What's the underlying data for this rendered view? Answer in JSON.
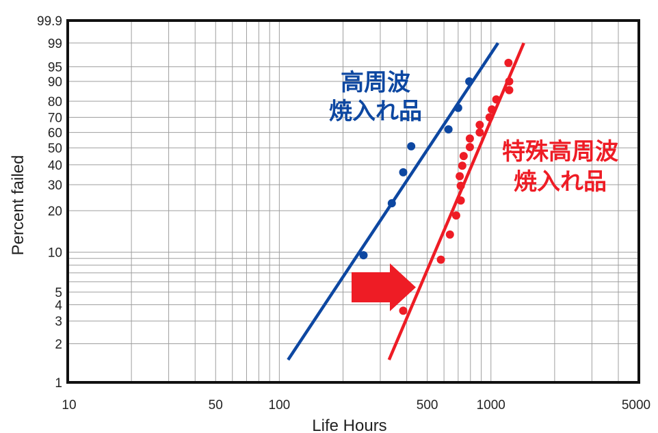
{
  "chart_data": {
    "type": "scatter",
    "title": "",
    "xlabel": "Life Hours",
    "ylabel": "Percent failed",
    "x_scale": "log",
    "y_scale": "weibull",
    "xlim": [
      10,
      5000
    ],
    "ylim": [
      1,
      99.9
    ],
    "x_tick_labels": [
      10,
      50,
      100,
      500,
      1000,
      5000
    ],
    "x_minor_gridlines": [
      20,
      30,
      40,
      60,
      70,
      80,
      90,
      200,
      300,
      400,
      600,
      700,
      800,
      900,
      2000,
      3000,
      4000
    ],
    "y_tick_labels": [
      1,
      2,
      3,
      4,
      5,
      10,
      20,
      30,
      40,
      50,
      60,
      70,
      80,
      90,
      95,
      99,
      99.9
    ],
    "y_extra_gridlines": [
      6,
      7,
      8,
      9
    ],
    "grid": true,
    "series": [
      {
        "name": "高周波\n焼入れ品",
        "color": "#0d47a1",
        "points": [
          [
            250,
            9.5
          ],
          [
            340,
            22.5
          ],
          [
            385,
            36
          ],
          [
            420,
            51
          ],
          [
            630,
            62
          ],
          [
            700,
            76
          ],
          [
            790,
            90
          ]
        ],
        "fit_line": [
          [
            110,
            1.5
          ],
          [
            1080,
            99
          ]
        ]
      },
      {
        "name": "特殊高周波\n焼入れ品",
        "color": "#ee1c25",
        "points": [
          [
            385,
            3.6
          ],
          [
            580,
            8.8
          ],
          [
            640,
            13.5
          ],
          [
            685,
            18.5
          ],
          [
            720,
            23.5
          ],
          [
            720,
            29.5
          ],
          [
            712,
            34
          ],
          [
            732,
            39.5
          ],
          [
            743,
            45
          ],
          [
            795,
            50.5
          ],
          [
            795,
            56
          ],
          [
            885,
            60
          ],
          [
            885,
            65
          ],
          [
            985,
            70
          ],
          [
            1010,
            75
          ],
          [
            1060,
            81
          ],
          [
            1220,
            86
          ],
          [
            1220,
            90
          ],
          [
            1210,
            96
          ]
        ],
        "fit_line": [
          [
            330,
            1.5
          ],
          [
            1430,
            99
          ]
        ]
      }
    ],
    "annotation": {
      "type": "arrow",
      "direction": "right",
      "color": "#ee1c25"
    }
  }
}
